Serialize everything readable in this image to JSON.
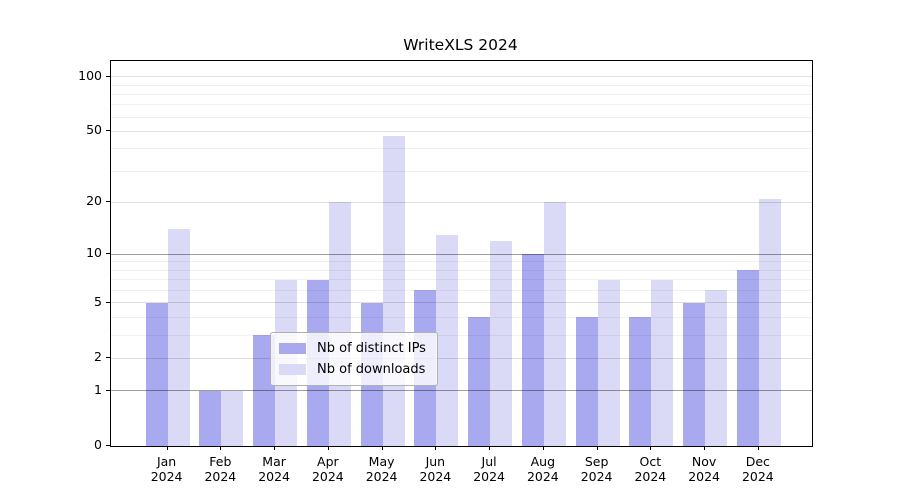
{
  "chart_data": {
    "type": "bar",
    "title": "WriteXLS 2024",
    "categories": [
      "Jan",
      "Feb",
      "Mar",
      "Apr",
      "May",
      "Jun",
      "Jul",
      "Aug",
      "Sep",
      "Oct",
      "Nov",
      "Dec"
    ],
    "x_tick_year": "2024",
    "series": [
      {
        "name": "Nb of distinct IPs",
        "key": "distinct-ips",
        "color": "#a9a9ef",
        "values": [
          5,
          1,
          3,
          7,
          5,
          6,
          4,
          10,
          4,
          4,
          5,
          8
        ]
      },
      {
        "name": "Nb of downloads",
        "key": "downloads",
        "color": "#dadaf6",
        "values": [
          14,
          1,
          7,
          20,
          47,
          13,
          12,
          20,
          7,
          7,
          6,
          21
        ]
      }
    ],
    "yticks": [
      0,
      1,
      2,
      5,
      10,
      20,
      50,
      100
    ],
    "ylim": [
      0,
      150
    ],
    "scale": "log1p",
    "grid": {
      "dark": [
        1,
        10
      ],
      "light": [
        2,
        5,
        20,
        50,
        100
      ],
      "minor": [
        3,
        4,
        6,
        7,
        8,
        9,
        30,
        40,
        60,
        70,
        80,
        90
      ]
    },
    "legend_position": "lower center",
    "grid_on": true
  }
}
